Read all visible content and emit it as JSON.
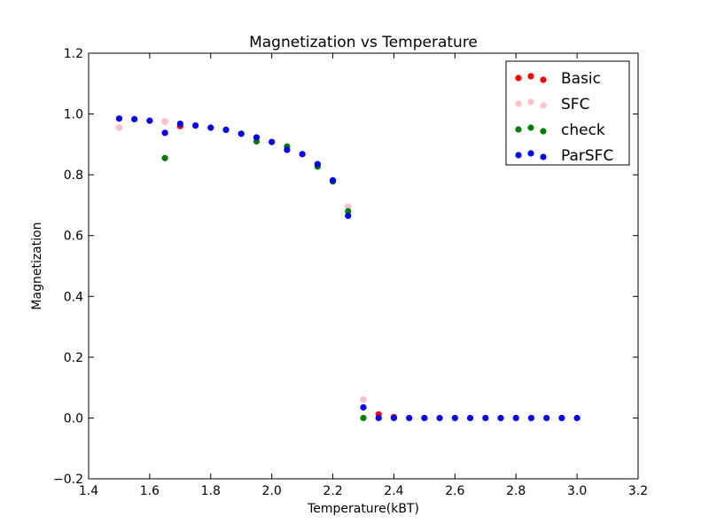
{
  "chart_data": {
    "type": "scatter",
    "title": "Magnetization vs Temperature",
    "xlabel": "Temperature(kBT)",
    "ylabel": "Magnetization",
    "xlim": [
      1.4,
      3.2
    ],
    "ylim": [
      -0.2,
      1.2
    ],
    "xticks": [
      "1.4",
      "1.6",
      "1.8",
      "2.0",
      "2.2",
      "2.4",
      "2.6",
      "2.8",
      "3.0",
      "3.2"
    ],
    "yticks": [
      "−0.2",
      "0.0",
      "0.2",
      "0.4",
      "0.6",
      "0.8",
      "1.0",
      "1.2"
    ],
    "grid": false,
    "legend_position": "top-right",
    "series": [
      {
        "name": "Basic",
        "color": "#ff0000",
        "x": [
          1.5,
          1.65,
          1.7,
          2.25,
          2.3,
          2.35,
          2.4
        ],
        "y": [
          0.955,
          0.975,
          0.96,
          0.695,
          0.06,
          0.012,
          0.003
        ]
      },
      {
        "name": "SFC",
        "color": "#ffc0cb",
        "x": [
          1.5,
          1.65,
          2.25,
          2.3
        ],
        "y": [
          0.955,
          0.975,
          0.695,
          0.06
        ]
      },
      {
        "name": "check",
        "color": "#008000",
        "x": [
          1.65,
          1.95,
          2.05,
          2.15,
          2.2,
          2.25,
          2.3
        ],
        "y": [
          0.855,
          0.91,
          0.893,
          0.827,
          0.778,
          0.68,
          0.0
        ]
      },
      {
        "name": "ParSFC",
        "color": "#0000ff",
        "x": [
          1.5,
          1.55,
          1.6,
          1.65,
          1.7,
          1.75,
          1.8,
          1.85,
          1.9,
          1.95,
          2.0,
          2.05,
          2.1,
          2.15,
          2.2,
          2.25,
          2.3,
          2.35,
          2.4,
          2.45,
          2.5,
          2.55,
          2.6,
          2.65,
          2.7,
          2.75,
          2.8,
          2.85,
          2.9,
          2.95,
          3.0
        ],
        "y": [
          0.985,
          0.983,
          0.978,
          0.938,
          0.968,
          0.962,
          0.955,
          0.948,
          0.935,
          0.923,
          0.908,
          0.882,
          0.868,
          0.835,
          0.782,
          0.665,
          0.035,
          0.0,
          0.0,
          0.0,
          0.0,
          0.0,
          0.0,
          0.0,
          0.0,
          0.0,
          0.0,
          0.0,
          0.0,
          0.0,
          0.0
        ]
      }
    ]
  }
}
